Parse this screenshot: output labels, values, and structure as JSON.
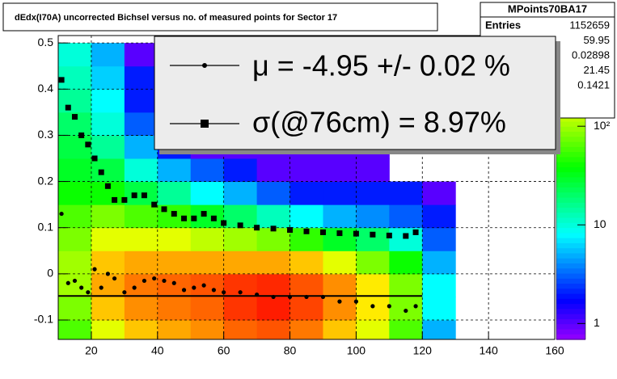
{
  "chart_data": {
    "type": "heatmap",
    "title": "dEdx(I70A) uncorrected Bichsel versus no. of measured points for Sector 17",
    "xlim": [
      10,
      160
    ],
    "xticks": [
      20,
      40,
      60,
      80,
      100,
      120,
      140,
      160
    ],
    "ylim": [
      -0.142,
      0.516
    ],
    "yticks": [
      -0.1,
      0,
      0.1,
      0.2,
      0.3,
      0.4,
      0.5
    ],
    "grid": true,
    "log_z": true,
    "zlim": [
      0.69,
      830
    ],
    "zticks": [
      1,
      10,
      {
        "value": 100,
        "label": "10²"
      }
    ],
    "x_bins": [
      10,
      20,
      30,
      40,
      50,
      60,
      70,
      80,
      90,
      100,
      110,
      120,
      130
    ],
    "y_bins": [
      -0.15,
      -0.1,
      -0.05,
      0,
      0.05,
      0.1,
      0.15,
      0.2,
      0.25,
      0.3,
      0.35,
      0.4,
      0.45,
      0.5
    ],
    "counts": [
      [
        60,
        150,
        250,
        300,
        350,
        450,
        500,
        400,
        250,
        150,
        60,
        5
      ],
      [
        80,
        250,
        350,
        400,
        450,
        600,
        700,
        550,
        350,
        200,
        80,
        8
      ],
      [
        100,
        300,
        400,
        450,
        500,
        600,
        650,
        500,
        350,
        200,
        80,
        8
      ],
      [
        100,
        250,
        300,
        300,
        300,
        300,
        300,
        250,
        150,
        80,
        40,
        5
      ],
      [
        80,
        150,
        150,
        150,
        120,
        100,
        80,
        50,
        30,
        20,
        10,
        3
      ],
      [
        60,
        80,
        60,
        50,
        30,
        20,
        12,
        8,
        5,
        4,
        3,
        2
      ],
      [
        40,
        40,
        25,
        15,
        8,
        5,
        3,
        2,
        2,
        2,
        2,
        1
      ],
      [
        30,
        25,
        10,
        5,
        3,
        2,
        1,
        1,
        1,
        1,
        0,
        0
      ],
      [
        25,
        15,
        5,
        2,
        1,
        1,
        1,
        1,
        1,
        1,
        0,
        0
      ],
      [
        20,
        10,
        3,
        1,
        1,
        1,
        1,
        1,
        1,
        1,
        0,
        0
      ],
      [
        15,
        8,
        2,
        1,
        1,
        1,
        1,
        1,
        1,
        0,
        0,
        0
      ],
      [
        12,
        6,
        2,
        1,
        1,
        1,
        1,
        1,
        1,
        0,
        0,
        0
      ],
      [
        10,
        5,
        1,
        1,
        1,
        1,
        1,
        1,
        1,
        0,
        0,
        0
      ]
    ],
    "x": [
      11,
      13,
      15,
      17,
      19,
      21,
      23,
      25,
      27,
      30,
      33,
      36,
      39,
      42,
      45,
      48,
      51,
      54,
      57,
      60,
      65,
      70,
      75,
      80,
      85,
      90,
      95,
      100,
      105,
      110,
      115,
      118
    ],
    "series": [
      {
        "name": "μ  = -4.95 +/-  0.02 %",
        "marker": "circle",
        "color": "#000000",
        "values": [
          0.13,
          -0.02,
          -0.015,
          -0.03,
          -0.04,
          0.01,
          -0.03,
          0.0,
          -0.01,
          -0.04,
          -0.03,
          -0.015,
          -0.01,
          -0.015,
          -0.02,
          -0.035,
          -0.03,
          -0.025,
          -0.035,
          -0.04,
          -0.04,
          -0.045,
          -0.05,
          -0.05,
          -0.05,
          -0.05,
          -0.06,
          -0.06,
          -0.07,
          -0.07,
          -0.08,
          -0.07
        ]
      },
      {
        "name": "σ(@76cm) =  8.97%",
        "marker": "square",
        "color": "#000000",
        "values": [
          0.42,
          0.36,
          0.34,
          0.3,
          0.28,
          0.25,
          0.22,
          0.19,
          0.16,
          0.16,
          0.17,
          0.17,
          0.15,
          0.14,
          0.13,
          0.12,
          0.12,
          0.13,
          0.12,
          0.11,
          0.105,
          0.1,
          0.098,
          0.095,
          0.092,
          0.09,
          0.088,
          0.087,
          0.085,
          0.083,
          0.082,
          0.09
        ]
      }
    ],
    "reference_line": {
      "y": -0.048,
      "x": [
        10,
        120
      ]
    },
    "stats": {
      "title": "MPoints70BA17",
      "entries_label": "Entries",
      "values": [
        1152659,
        59.95,
        0.02898,
        21.45,
        0.1421
      ]
    }
  }
}
